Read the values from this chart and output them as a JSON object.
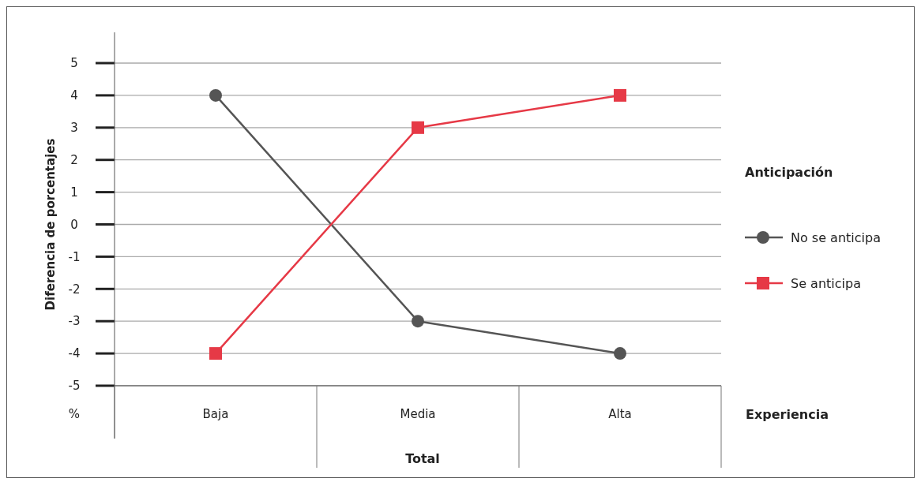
{
  "chart_data": {
    "type": "line",
    "ylabel": "Diferencia de porcentajes",
    "xlabel": "Experiencia",
    "legend_title": "Anticipación",
    "annotations": [
      "Total",
      "%"
    ],
    "categories": [
      "Baja",
      "Media",
      "Alta"
    ],
    "series": [
      {
        "name": "No se anticipa",
        "color": "#555555",
        "values": [
          4,
          -3,
          -4
        ],
        "marker": "circle"
      },
      {
        "name": "Se anticipa",
        "color": "#e63946",
        "values": [
          -4,
          3,
          4
        ],
        "marker": "square"
      }
    ],
    "ylim": [
      -5,
      5
    ],
    "yticks": [
      -5,
      -4,
      -3,
      -2,
      -1,
      0,
      1,
      2,
      3,
      4,
      5
    ],
    "grid": "y",
    "legend": "right"
  }
}
